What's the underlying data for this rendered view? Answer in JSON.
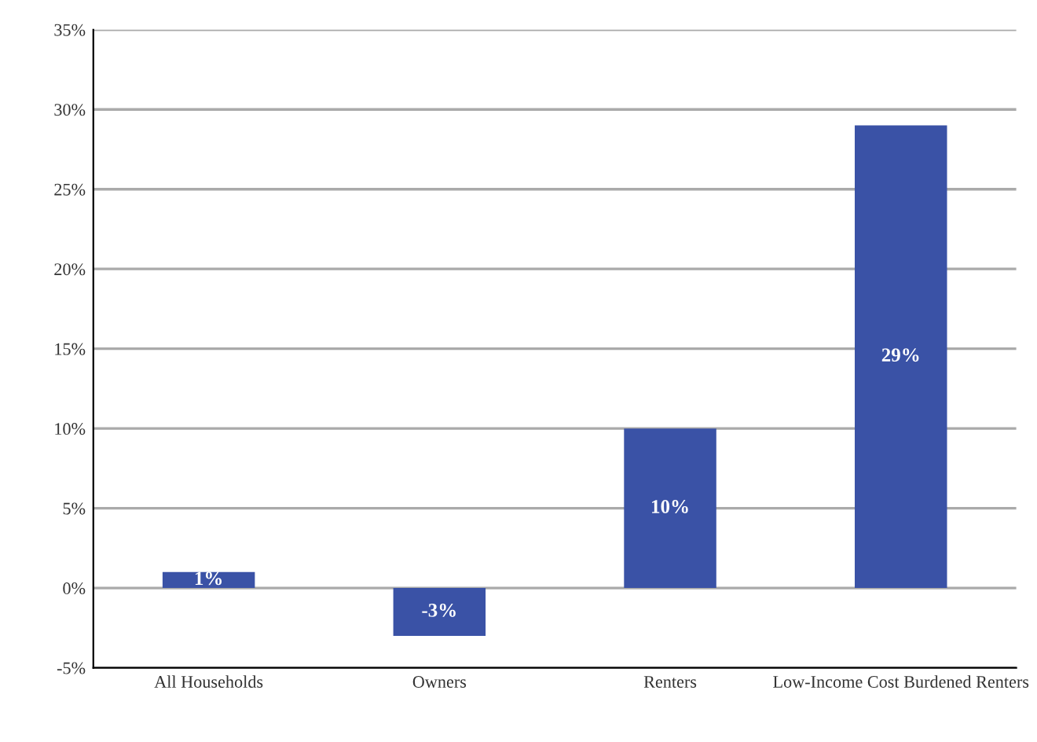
{
  "chart_data": {
    "type": "bar",
    "categories": [
      "All Households",
      "Owners",
      "Renters",
      "Low-Income Cost Burdened Renters"
    ],
    "values": [
      1,
      -3,
      10,
      29
    ],
    "value_labels": [
      "1%",
      "-3%",
      "10%",
      "29%"
    ],
    "color": "#3a52a6",
    "ylim": [
      -5,
      35
    ],
    "yticks": [
      {
        "value": -5,
        "label": "-5%"
      },
      {
        "value": 0,
        "label": "0%"
      },
      {
        "value": 5,
        "label": "5%"
      },
      {
        "value": 10,
        "label": "10%"
      },
      {
        "value": 15,
        "label": "15%"
      },
      {
        "value": 20,
        "label": "20%"
      },
      {
        "value": 25,
        "label": "25%"
      },
      {
        "value": 30,
        "label": "30%"
      },
      {
        "value": 35,
        "label": "35%"
      }
    ],
    "grid": "y"
  }
}
